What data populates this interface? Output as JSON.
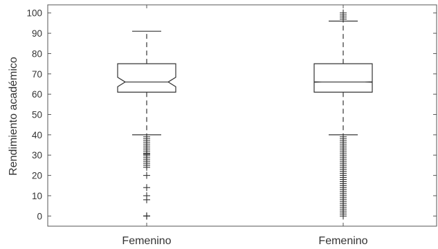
{
  "chart_data": {
    "type": "box",
    "title": "",
    "xlabel": "",
    "ylabel": "Rendimiento académico",
    "ylim": [
      -5,
      104
    ],
    "yticks": [
      0,
      10,
      20,
      30,
      40,
      50,
      60,
      70,
      80,
      90,
      100
    ],
    "grid": false,
    "notched": true,
    "categories": [
      "Femenino",
      "Femenino"
    ],
    "boxes": [
      {
        "label": "Femenino",
        "q1": 61,
        "median": 66,
        "q3": 75,
        "whisker_low": 40,
        "whisker_high": 91,
        "notch_low": 63.7,
        "notch_high": 68.3,
        "outliers": [
          0,
          0,
          0,
          8,
          10,
          14,
          20,
          24,
          25,
          26,
          27,
          28,
          29,
          30,
          30.5,
          31,
          32,
          33,
          34,
          35,
          36,
          37,
          38,
          39
        ]
      },
      {
        "label": "Femenino",
        "q1": 61,
        "median": 66,
        "q3": 75,
        "whisker_low": 40,
        "whisker_high": 96,
        "notch_low": 65.9,
        "notch_high": 66.1,
        "outliers": [
          0,
          1,
          2,
          3,
          4,
          5,
          6,
          7,
          8,
          9,
          10,
          11,
          12,
          13,
          14,
          15,
          16,
          17,
          18,
          19,
          20,
          21,
          22,
          23,
          24,
          25,
          26,
          27,
          28,
          29,
          30,
          31,
          32,
          33,
          34,
          35,
          36,
          37,
          38,
          39,
          97,
          98,
          99,
          100
        ]
      }
    ]
  }
}
